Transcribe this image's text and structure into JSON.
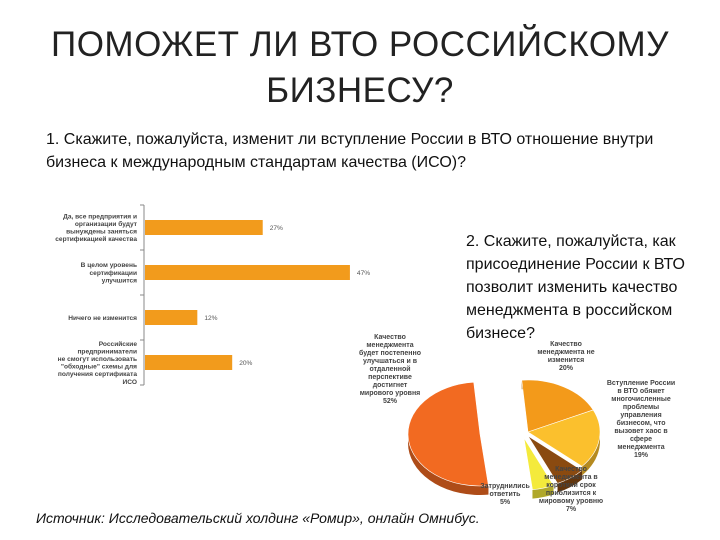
{
  "title": "ПОМОЖЕТ ЛИ ВТО РОССИЙСКОМУ БИЗНЕСУ?",
  "question1": "1. Скажите, пожалуйста, изменит ли вступление России в ВТО отношение внутри бизнеса к международным стандартам качества (ИСО)?",
  "question2": "2. Скажите, пожалуйста, как присоединение России к ВТО позволит изменить качество менеджмента в российском бизнесе?",
  "source": "Источник: Исследовательский холдинг «Ромир», онлайн Омнибус.",
  "chart_data": [
    {
      "type": "bar",
      "orientation": "horizontal",
      "categories": [
        [
          "Да, все предприятия и",
          "организации будут",
          "вынуждены заняться",
          "сертификацией качества"
        ],
        [
          "В целом уровень",
          "сертификации",
          "улучшится"
        ],
        [
          "Ничего не изменится"
        ],
        [
          "Российские",
          "предприниматели",
          "не смогут использовать",
          "\"обходные\" схемы для",
          "получения сертификата",
          "ИСО"
        ]
      ],
      "values": [
        27,
        47,
        12,
        20
      ],
      "value_labels": [
        "27%",
        "47%",
        "12%",
        "20%"
      ],
      "color": "#f29b1c",
      "xlim": [
        0,
        50
      ],
      "grid": false
    },
    {
      "type": "pie",
      "slices": [
        {
          "label": [
            "Качество",
            "менеджмента не",
            "изменится"
          ],
          "value": 20,
          "value_label": "20%",
          "color": "#f39a1a"
        },
        {
          "label": [
            "Вступление России",
            "в ВТО обяжет",
            "многочисленные",
            "проблемы",
            "управления",
            "бизнесом, что",
            "вызовет хаос в",
            "сфере",
            "менеджмента"
          ],
          "value": 19,
          "value_label": "19%",
          "color": "#fbc02d"
        },
        {
          "label": [
            "Качество",
            "менеджмента в",
            "короткий срок",
            "приблизится к",
            "мировому уровню"
          ],
          "value": 7,
          "value_label": "7%",
          "color": "#8a4a10"
        },
        {
          "label": [
            "Затруднились",
            "ответить"
          ],
          "value": 5,
          "value_label": "5%",
          "color": "#f4ea3c"
        },
        {
          "label": [
            "Качество",
            "менеджмента",
            "будет постепенно",
            "улучшаться и в",
            "отдаленной",
            "перспективе",
            "достигнет",
            "мирового уровня"
          ],
          "value": 52,
          "value_label": "52%",
          "color": "#f26a21"
        }
      ]
    }
  ]
}
